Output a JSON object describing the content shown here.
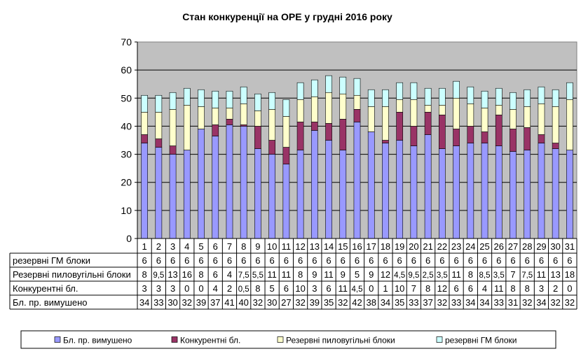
{
  "chart_data": {
    "type": "bar",
    "stacked": true,
    "title": "Стан конкуренції на ОРЕ  у грудні 2016 року",
    "xlabel": "",
    "ylabel": "",
    "ylim": [
      0,
      70
    ],
    "yticks": [
      "0",
      "10",
      "20",
      "30",
      "40",
      "50",
      "60",
      "70"
    ],
    "categories": [
      "1",
      "2",
      "3",
      "4",
      "5",
      "6",
      "7",
      "8",
      "9",
      "10",
      "11",
      "12",
      "13",
      "14",
      "15",
      "16",
      "17",
      "18",
      "19",
      "20",
      "21",
      "22",
      "23",
      "24",
      "25",
      "26",
      "27",
      "28",
      "29",
      "30",
      "31"
    ],
    "series": [
      {
        "name": "Бл. пр. вимушено",
        "color": "#9999ff",
        "values": [
          34,
          32.5,
          30,
          31.5,
          39,
          36.5,
          40.5,
          40,
          32,
          30,
          26.5,
          31.5,
          38.5,
          35,
          31.5,
          41.5,
          38,
          34,
          35,
          33,
          37,
          32,
          33,
          34,
          34,
          33,
          31,
          31.5,
          34,
          32,
          31.5
        ],
        "labels": [
          "34",
          "33",
          "30",
          "32",
          "39",
          "37",
          "41",
          "40",
          "32",
          "30",
          "27",
          "32",
          "39",
          "35",
          "32",
          "42",
          "38",
          "34",
          "35",
          "33",
          "37",
          "32",
          "33",
          "34",
          "34",
          "33",
          "31",
          "32",
          "34",
          "32",
          "32"
        ]
      },
      {
        "name": "Конкурентні бл.",
        "color": "#993366",
        "values": [
          3,
          3,
          3,
          0,
          0,
          4,
          2,
          0.5,
          8,
          5,
          6,
          10,
          3,
          6,
          11,
          4.5,
          0,
          1,
          10,
          7,
          8,
          12,
          6,
          6,
          4,
          11,
          8,
          8,
          3,
          2,
          0
        ],
        "labels": [
          "3",
          "3",
          "3",
          "0",
          "0",
          "4",
          "2",
          "0,5",
          "8",
          "5",
          "6",
          "10",
          "3",
          "6",
          "11",
          "4,5",
          "0",
          "1",
          "10",
          "7",
          "8",
          "12",
          "6",
          "6",
          "4",
          "11",
          "8",
          "8",
          "3",
          "2",
          "0"
        ]
      },
      {
        "name": "Резервні пиловугільні  блоки",
        "color": "#ffffcc",
        "values": [
          8,
          9.5,
          13,
          16,
          8,
          6,
          4,
          7.5,
          5.5,
          11,
          11,
          8,
          9,
          11,
          9,
          5,
          9,
          12,
          4.5,
          9.5,
          2.5,
          3.5,
          11,
          8,
          8.5,
          3.5,
          7,
          7.5,
          11,
          13,
          18
        ],
        "labels": [
          "8",
          "9,5",
          "13",
          "16",
          "8",
          "6",
          "4",
          "7,5",
          "5,5",
          "11",
          "11",
          "8",
          "9",
          "11",
          "9",
          "5",
          "9",
          "12",
          "4,5",
          "9,5",
          "2,5",
          "3,5",
          "11",
          "8",
          "8,5",
          "3,5",
          "7",
          "7,5",
          "11",
          "13",
          "18"
        ]
      },
      {
        "name": "резервні ГМ блоки",
        "color": "#ccffff",
        "values": [
          6,
          6,
          6,
          6,
          6,
          6,
          6,
          6,
          6,
          6,
          6,
          6,
          6,
          6,
          6,
          6,
          6,
          6,
          6,
          6,
          6,
          6,
          6,
          6,
          6,
          6,
          6,
          6,
          6,
          6,
          6
        ],
        "labels": [
          "6",
          "6",
          "6",
          "6",
          "6",
          "6",
          "6",
          "6",
          "6",
          "6",
          "6",
          "6",
          "6",
          "6",
          "6",
          "6",
          "6",
          "6",
          "6",
          "6",
          "6",
          "6",
          "6",
          "6",
          "6",
          "6",
          "6",
          "6",
          "6",
          "6",
          "6"
        ]
      }
    ],
    "table_rows": [
      {
        "label": "резервні ГМ блоки",
        "series_index": 3
      },
      {
        "label": "Резервні пиловугільні блоки",
        "series_index": 2
      },
      {
        "label": "Конкурентні бл.",
        "series_index": 1
      },
      {
        "label": "Бл. пр. вимушено",
        "series_index": 0
      }
    ],
    "legend": {
      "placement": "bottom",
      "entries": [
        "Бл. пр. вимушено",
        "Конкурентні бл.",
        "Резервні пиловугільні  блоки",
        "резервні ГМ блоки"
      ]
    },
    "plot_area_color": "#c0c0c0",
    "grid": true
  }
}
